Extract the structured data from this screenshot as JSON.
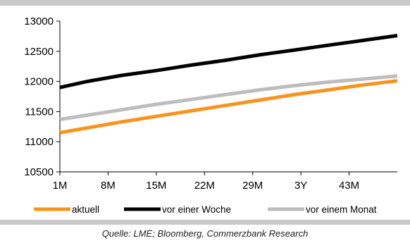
{
  "chart_data": {
    "type": "line",
    "title": "",
    "xlabel": "",
    "ylabel": "",
    "x_ticks": [
      "1M",
      "8M",
      "15M",
      "22M",
      "29M",
      "3Y",
      "43M"
    ],
    "y_ticks": [
      10500,
      11000,
      11500,
      12000,
      12500,
      13000
    ],
    "ylim": [
      10500,
      13000
    ],
    "x": [
      1,
      50
    ],
    "x_tick_positions": [
      1,
      8,
      15,
      22,
      29,
      36,
      43
    ],
    "grid": false,
    "legend_position": "bottom",
    "series": [
      {
        "name": "aktuell",
        "color": "#f7941d",
        "x": [
          1,
          5,
          10,
          15,
          20,
          25,
          30,
          35,
          40,
          45,
          50
        ],
        "values": [
          11150,
          11230,
          11330,
          11420,
          11510,
          11600,
          11690,
          11780,
          11860,
          11940,
          12010
        ]
      },
      {
        "name": "vor einer Woche",
        "color": "#000000",
        "x": [
          1,
          5,
          10,
          15,
          20,
          25,
          30,
          35,
          40,
          45,
          50
        ],
        "values": [
          11900,
          12000,
          12100,
          12180,
          12270,
          12350,
          12440,
          12520,
          12600,
          12680,
          12760
        ]
      },
      {
        "name": "vor einem Monat",
        "color": "#bdbdbd",
        "x": [
          1,
          5,
          10,
          15,
          20,
          25,
          30,
          35,
          40,
          45,
          50
        ],
        "values": [
          11370,
          11440,
          11530,
          11620,
          11700,
          11780,
          11860,
          11930,
          11990,
          12040,
          12090
        ]
      }
    ]
  },
  "source": "Quelle: LME; Bloomberg, Commerzbank Research"
}
